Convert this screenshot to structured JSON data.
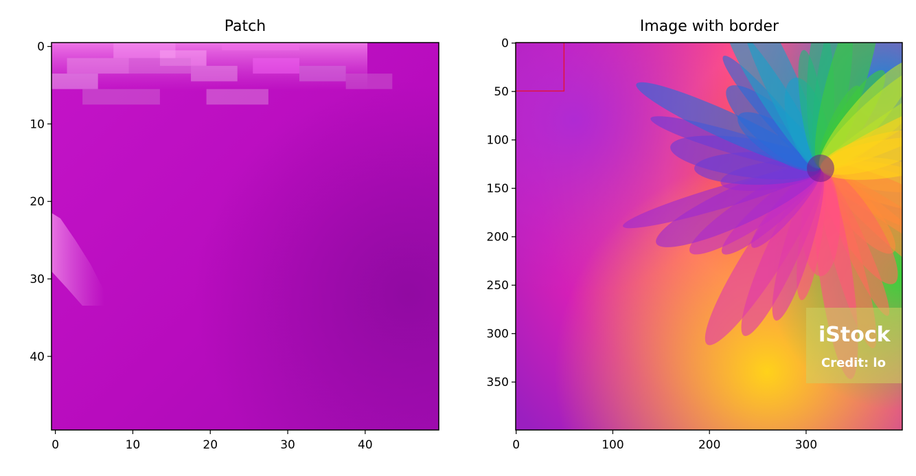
{
  "chart_data": [
    {
      "type": "heatmap",
      "title": "Patch",
      "xlabel": "",
      "ylabel": "",
      "xlim": [
        -0.5,
        49.5
      ],
      "ylim": [
        49.5,
        -0.5
      ],
      "xticks": [
        0,
        10,
        20,
        30,
        40
      ],
      "yticks": [
        0,
        10,
        20,
        30,
        40
      ],
      "grid": false,
      "content": "magenta image patch",
      "colors": {
        "base": "#c20cc4",
        "highlight": "#f27af0",
        "shadow": "#9a0ca8"
      }
    },
    {
      "type": "heatmap",
      "title": "Image with border",
      "xlabel": "",
      "ylabel": "",
      "xlim": [
        -0.5,
        399.5
      ],
      "ylim": [
        399.5,
        -0.5
      ],
      "xticks": [
        0,
        100,
        200,
        300
      ],
      "yticks": [
        0,
        50,
        100,
        150,
        200,
        250,
        300,
        350
      ],
      "grid": false,
      "content": "rainbow flower photograph",
      "border_rect": {
        "x": [
          0,
          49
        ],
        "y": [
          0,
          49
        ],
        "color": "#e0143c"
      },
      "watermark": {
        "line1": "iStock",
        "line2": "Credit: lo"
      }
    }
  ]
}
